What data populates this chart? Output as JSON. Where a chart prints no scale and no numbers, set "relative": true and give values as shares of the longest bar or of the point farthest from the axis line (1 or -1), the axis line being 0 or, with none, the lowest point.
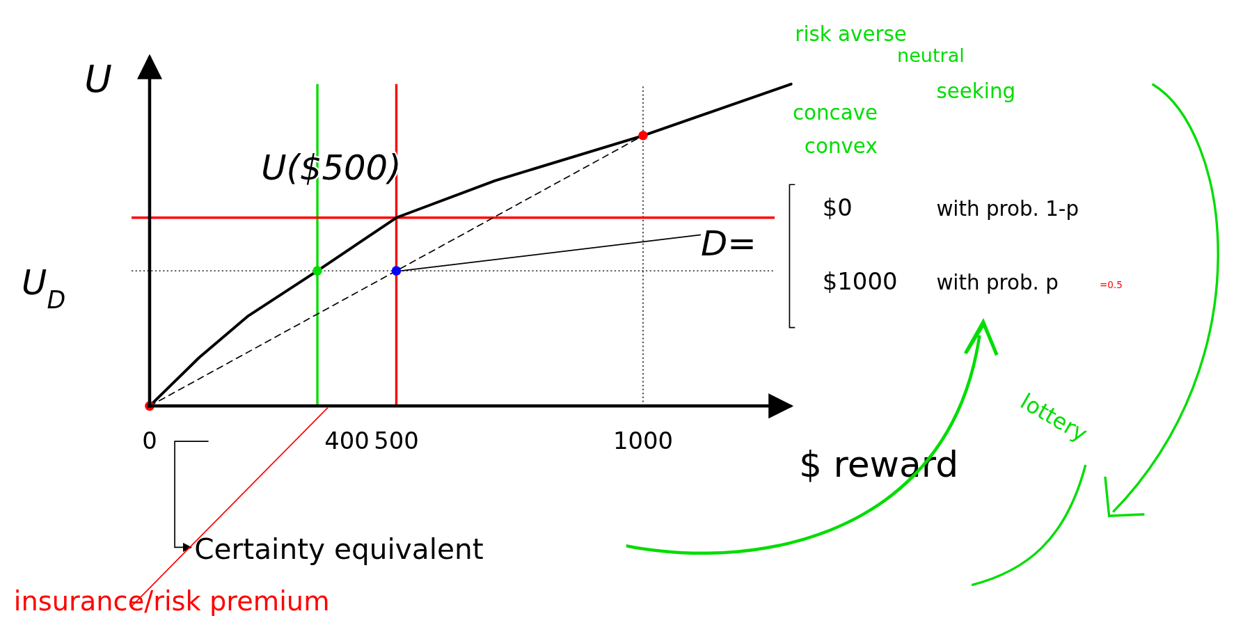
{
  "chart_data": {
    "type": "line",
    "relative": true,
    "xlabel": "$ reward",
    "ylabel": "U",
    "xlim": [
      0,
      1300
    ],
    "xticks": [
      0,
      400,
      500,
      1000
    ],
    "series": [
      {
        "color": "#000000",
        "x": [
          0,
          100,
          200,
          340,
          500,
          700,
          1000,
          1150,
          1300
        ],
        "values": [
          0,
          0.15,
          0.28,
          0.42,
          0.585,
          0.7,
          0.84,
          0.92,
          1
        ]
      },
      {
        "color": "#000000",
        "line_style": "dashed",
        "x": [
          0,
          1000
        ],
        "values": [
          0,
          0.84
        ]
      },
      {
        "type": "scatter",
        "colors": [
          "#ff0000",
          "#00dd00",
          "#0000ff",
          "#ff0000"
        ],
        "x": [
          0,
          340,
          500,
          1000
        ],
        "values": [
          0,
          0.42,
          0.42,
          0.84
        ]
      }
    ],
    "ref_lines": [
      {
        "axis": "y",
        "value": 0.42,
        "label": "U$_{D}$",
        "color": "#000000",
        "line_style": "dotted"
      },
      {
        "axis": "x",
        "value": 1000,
        "color": "#000000",
        "line_style": "dotted"
      },
      {
        "axis": "x",
        "value": 500,
        "color": "#ff0000",
        "line_style": "solid"
      },
      {
        "axis": "x",
        "value": 340,
        "color": "#00dd00",
        "line_style": "solid"
      },
      {
        "axis": "y",
        "value": 0.585,
        "color": "#ff0000",
        "line_style": "solid"
      }
    ],
    "annotations": [
      "U($500)",
      "D=",
      "$0",
      "with prob. 1-p",
      "$1000",
      "with prob. p",
      "=0.5",
      "Certainty equivalent",
      "insurance/risk premium",
      "risk averse",
      "neutral",
      "seeking",
      "concave",
      "convex",
      "lottery"
    ],
    "legend": false,
    "grid": false
  }
}
